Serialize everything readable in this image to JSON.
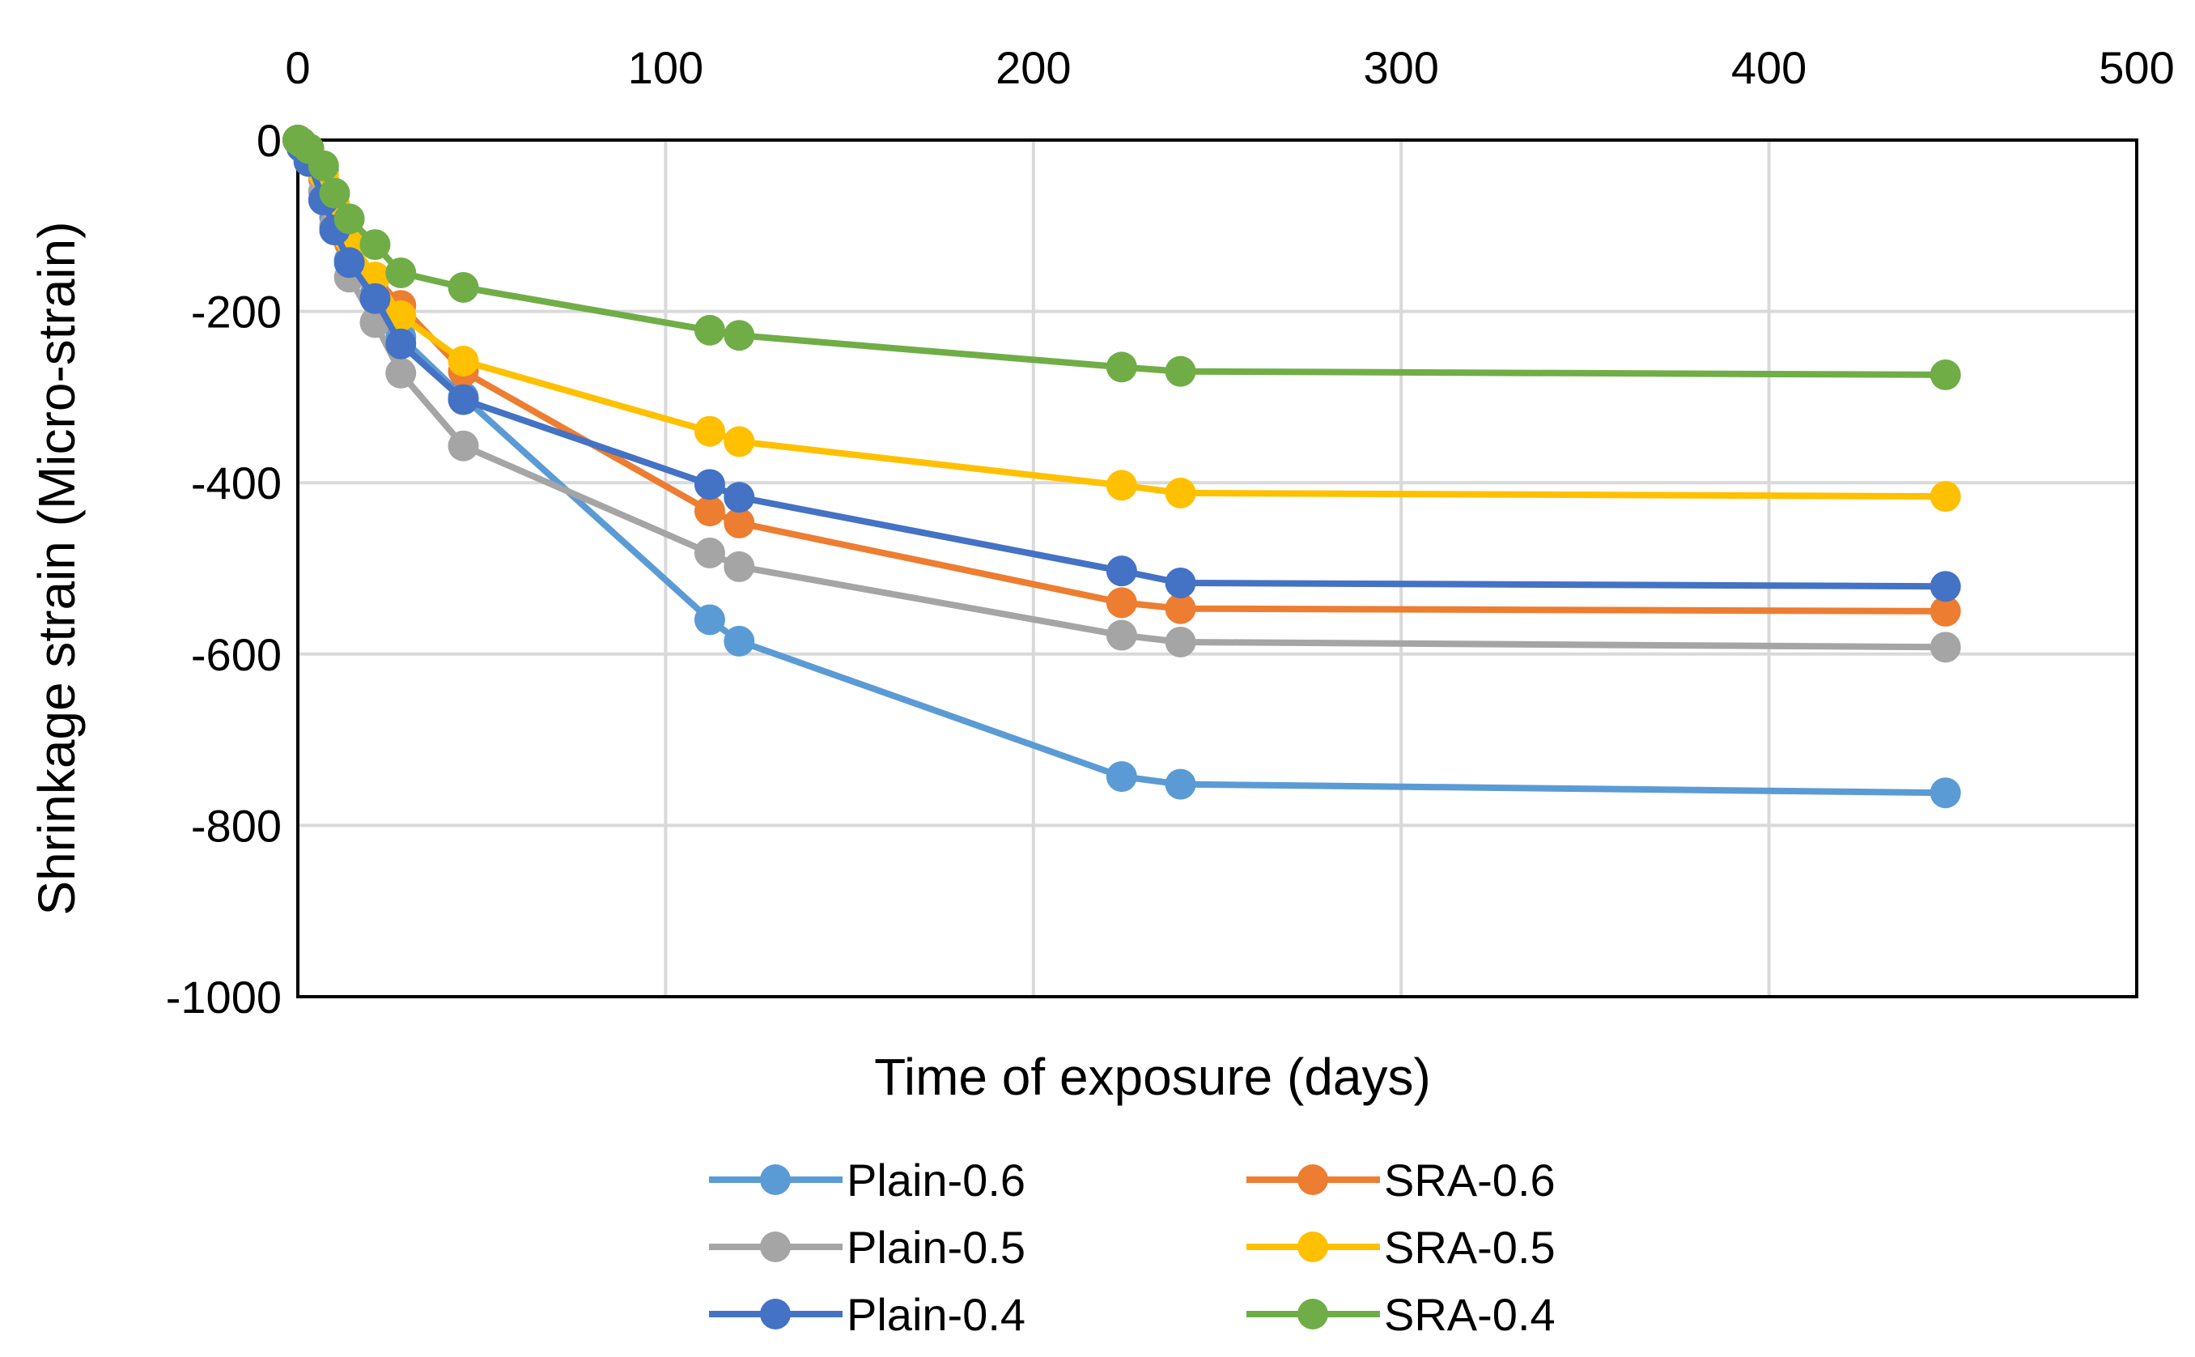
{
  "chart_data": {
    "type": "line",
    "title": "",
    "xlabel": "Time of exposure (days)",
    "ylabel": "Shrinkage strain (Micro-strain)",
    "xlim": [
      0,
      500
    ],
    "ylim": [
      -1000,
      0
    ],
    "xticks": [
      0,
      100,
      200,
      300,
      400,
      500
    ],
    "yticks": [
      0,
      -200,
      -400,
      -600,
      -800,
      -1000
    ],
    "xtick_labels": [
      "0",
      "100",
      "200",
      "300",
      "400",
      "500"
    ],
    "ytick_labels": [
      "0",
      "-200",
      "-400",
      "-600",
      "-800",
      "-1000"
    ],
    "x_axis_position": "top",
    "grid": true,
    "legend_position": "bottom",
    "series": [
      {
        "name": "Plain-0.6",
        "color": "#5b9bd5",
        "x": [
          0,
          1,
          3,
          7,
          10,
          14,
          21,
          28,
          45,
          112,
          120,
          224,
          240,
          448
        ],
        "y": [
          0,
          -8,
          -20,
          -35,
          -90,
          -140,
          -180,
          -230,
          -300,
          -560,
          -585,
          -743,
          -752,
          -762
        ]
      },
      {
        "name": "SRA-0.6",
        "color": "#ed7d31",
        "x": [
          0,
          1,
          3,
          7,
          10,
          14,
          21,
          28,
          45,
          112,
          120,
          224,
          240,
          448
        ],
        "y": [
          0,
          -6,
          -15,
          -45,
          -80,
          -120,
          -160,
          -193,
          -270,
          -433,
          -447,
          -540,
          -547,
          -550
        ]
      },
      {
        "name": "Plain-0.5",
        "color": "#a5a5a5",
        "x": [
          0,
          1,
          3,
          7,
          10,
          14,
          21,
          28,
          45,
          112,
          120,
          224,
          240,
          448
        ],
        "y": [
          0,
          -7,
          -22,
          -60,
          -100,
          -160,
          -213,
          -272,
          -357,
          -482,
          -498,
          -578,
          -586,
          -592
        ]
      },
      {
        "name": "SRA-0.5",
        "color": "#ffc000",
        "x": [
          0,
          1,
          3,
          7,
          10,
          14,
          21,
          28,
          45,
          112,
          120,
          224,
          240,
          448
        ],
        "y": [
          0,
          -5,
          -15,
          -40,
          -75,
          -115,
          -160,
          -205,
          -258,
          -340,
          -352,
          -403,
          -412,
          -416
        ]
      },
      {
        "name": "Plain-0.4",
        "color": "#4472c4",
        "x": [
          0,
          1,
          3,
          7,
          10,
          14,
          21,
          28,
          45,
          112,
          120,
          224,
          240,
          448
        ],
        "y": [
          0,
          -8,
          -25,
          -70,
          -105,
          -143,
          -185,
          -238,
          -303,
          -402,
          -417,
          -503,
          -517,
          -521
        ]
      },
      {
        "name": "SRA-0.4",
        "color": "#70ad47",
        "x": [
          0,
          1,
          3,
          7,
          10,
          14,
          21,
          28,
          45,
          112,
          120,
          224,
          240,
          448
        ],
        "y": [
          0,
          -3,
          -10,
          -30,
          -62,
          -92,
          -122,
          -155,
          -172,
          -222,
          -228,
          -265,
          -270,
          -274
        ]
      }
    ]
  }
}
